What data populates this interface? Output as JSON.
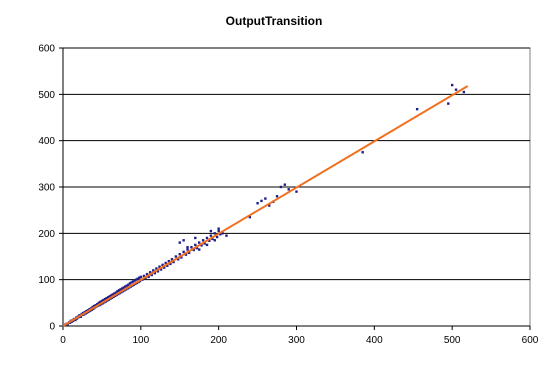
{
  "chart_data": {
    "type": "scatter",
    "title": "OutputTransition",
    "xlabel": "",
    "ylabel": "",
    "xlim": [
      0,
      600
    ],
    "ylim": [
      0,
      600
    ],
    "x_ticks": [
      0,
      100,
      200,
      300,
      400,
      500,
      600
    ],
    "y_ticks": [
      0,
      100,
      200,
      300,
      400,
      500,
      600
    ],
    "grid": "horizontal",
    "legend": "none",
    "colors": {
      "points": "#1f1f8c",
      "trendline": "#f07020",
      "gridlines": "#000000",
      "plot_background": "#ffffff"
    },
    "series": [
      {
        "kind": "points",
        "points": [
          [
            3,
            3
          ],
          [
            5,
            5
          ],
          [
            6,
            4
          ],
          [
            8,
            8
          ],
          [
            9,
            7
          ],
          [
            10,
            11
          ],
          [
            11,
            9
          ],
          [
            12,
            12
          ],
          [
            13,
            11
          ],
          [
            14,
            15
          ],
          [
            15,
            14
          ],
          [
            16,
            13
          ],
          [
            17,
            18
          ],
          [
            18,
            16
          ],
          [
            19,
            20
          ],
          [
            20,
            19
          ],
          [
            21,
            23
          ],
          [
            22,
            21
          ],
          [
            23,
            20
          ],
          [
            24,
            26
          ],
          [
            25,
            24
          ],
          [
            26,
            28
          ],
          [
            27,
            25
          ],
          [
            28,
            30
          ],
          [
            29,
            27
          ],
          [
            30,
            32
          ],
          [
            31,
            29
          ],
          [
            32,
            34
          ],
          [
            33,
            31
          ],
          [
            34,
            36
          ],
          [
            35,
            33
          ],
          [
            36,
            38
          ],
          [
            37,
            35
          ],
          [
            38,
            41
          ],
          [
            39,
            37
          ],
          [
            40,
            43
          ],
          [
            41,
            40
          ],
          [
            42,
            45
          ],
          [
            43,
            42
          ],
          [
            44,
            47
          ],
          [
            45,
            44
          ],
          [
            46,
            50
          ],
          [
            47,
            45
          ],
          [
            48,
            52
          ],
          [
            49,
            47
          ],
          [
            50,
            54
          ],
          [
            51,
            49
          ],
          [
            52,
            56
          ],
          [
            53,
            51
          ],
          [
            54,
            58
          ],
          [
            55,
            53
          ],
          [
            56,
            60
          ],
          [
            57,
            55
          ],
          [
            58,
            62
          ],
          [
            59,
            57
          ],
          [
            60,
            64
          ],
          [
            61,
            59
          ],
          [
            62,
            66
          ],
          [
            63,
            61
          ],
          [
            64,
            68
          ],
          [
            65,
            63
          ],
          [
            66,
            70
          ],
          [
            67,
            65
          ],
          [
            68,
            72
          ],
          [
            69,
            67
          ],
          [
            70,
            75
          ],
          [
            71,
            69
          ],
          [
            72,
            77
          ],
          [
            73,
            71
          ],
          [
            74,
            79
          ],
          [
            75,
            73
          ],
          [
            76,
            81
          ],
          [
            77,
            75
          ],
          [
            78,
            83
          ],
          [
            79,
            77
          ],
          [
            80,
            85
          ],
          [
            81,
            79
          ],
          [
            82,
            87
          ],
          [
            83,
            81
          ],
          [
            84,
            89
          ],
          [
            85,
            83
          ],
          [
            86,
            92
          ],
          [
            87,
            85
          ],
          [
            88,
            94
          ],
          [
            89,
            87
          ],
          [
            90,
            96
          ],
          [
            91,
            89
          ],
          [
            92,
            98
          ],
          [
            93,
            91
          ],
          [
            94,
            100
          ],
          [
            95,
            93
          ],
          [
            96,
            102
          ],
          [
            97,
            95
          ],
          [
            98,
            104
          ],
          [
            99,
            97
          ],
          [
            100,
            106
          ],
          [
            102,
            100
          ],
          [
            104,
            108
          ],
          [
            106,
            104
          ],
          [
            108,
            112
          ],
          [
            110,
            106
          ],
          [
            112,
            116
          ],
          [
            114,
            110
          ],
          [
            116,
            120
          ],
          [
            118,
            114
          ],
          [
            120,
            124
          ],
          [
            122,
            118
          ],
          [
            124,
            128
          ],
          [
            126,
            122
          ],
          [
            128,
            132
          ],
          [
            130,
            126
          ],
          [
            132,
            136
          ],
          [
            134,
            130
          ],
          [
            136,
            140
          ],
          [
            138,
            134
          ],
          [
            140,
            144
          ],
          [
            142,
            138
          ],
          [
            145,
            150
          ],
          [
            148,
            144
          ],
          [
            150,
            155
          ],
          [
            152,
            148
          ],
          [
            155,
            160
          ],
          [
            158,
            154
          ],
          [
            160,
            165
          ],
          [
            162,
            158
          ],
          [
            165,
            170
          ],
          [
            168,
            164
          ],
          [
            170,
            175
          ],
          [
            172,
            168
          ],
          [
            175,
            180
          ],
          [
            178,
            174
          ],
          [
            180,
            185
          ],
          [
            182,
            178
          ],
          [
            185,
            190
          ],
          [
            188,
            184
          ],
          [
            190,
            195
          ],
          [
            192,
            188
          ],
          [
            195,
            200
          ],
          [
            198,
            192
          ],
          [
            200,
            205
          ],
          [
            202,
            198
          ],
          [
            205,
            200
          ],
          [
            150,
            180
          ],
          [
            155,
            185
          ],
          [
            160,
            170
          ],
          [
            170,
            190
          ],
          [
            175,
            165
          ],
          [
            185,
            175
          ],
          [
            190,
            205
          ],
          [
            195,
            185
          ],
          [
            200,
            210
          ],
          [
            210,
            195
          ],
          [
            240,
            235
          ],
          [
            250,
            265
          ],
          [
            255,
            270
          ],
          [
            260,
            275
          ],
          [
            265,
            260
          ],
          [
            270,
            268
          ],
          [
            275,
            280
          ],
          [
            280,
            300
          ],
          [
            285,
            305
          ],
          [
            290,
            295
          ],
          [
            300,
            290
          ],
          [
            385,
            375
          ],
          [
            455,
            468
          ],
          [
            495,
            480
          ],
          [
            500,
            520
          ],
          [
            505,
            510
          ],
          [
            515,
            505
          ]
        ]
      },
      {
        "kind": "trendline",
        "points": [
          [
            0,
            0
          ],
          [
            520,
            518
          ]
        ]
      }
    ]
  }
}
